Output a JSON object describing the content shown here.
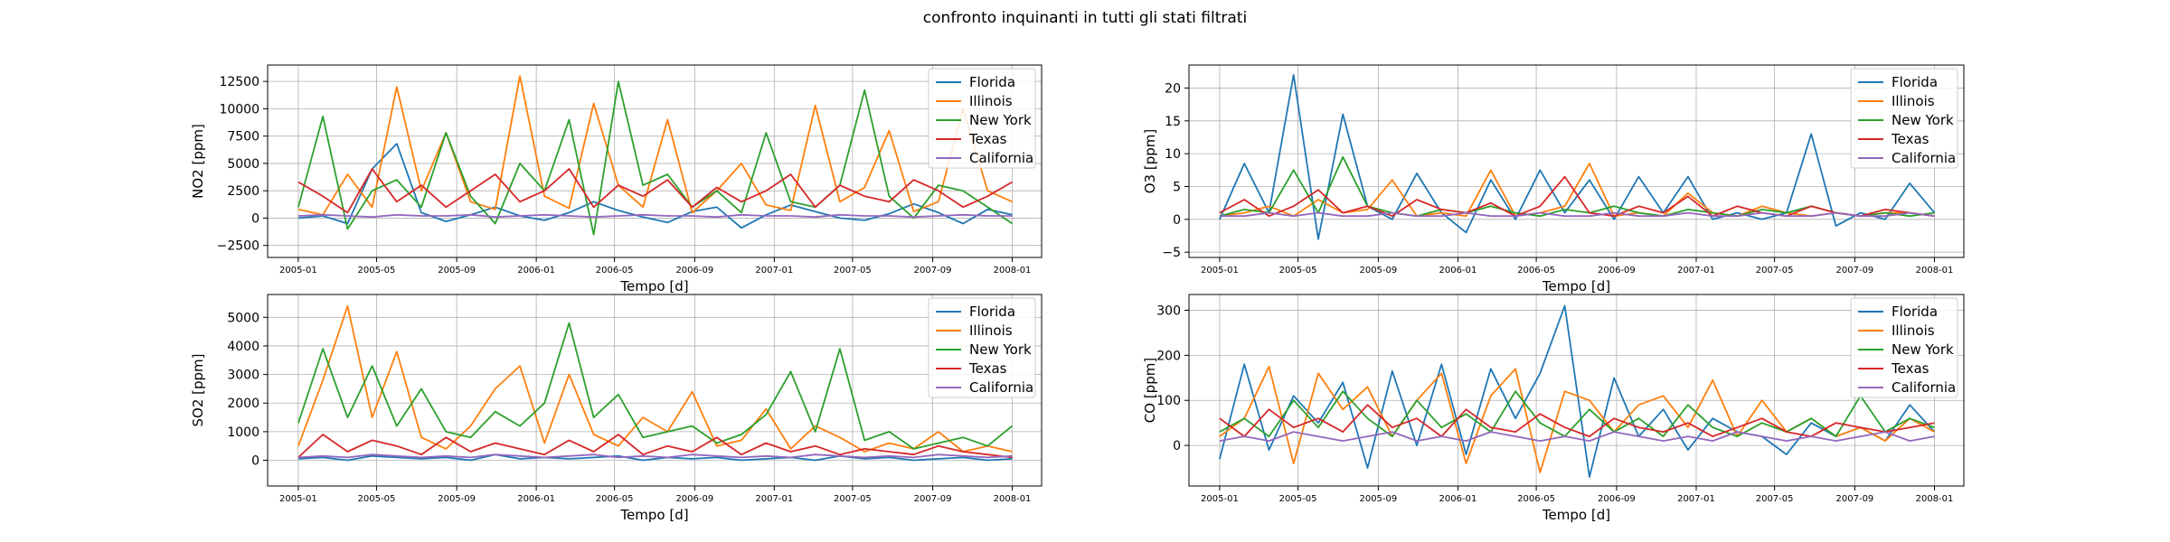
{
  "figure": {
    "title": "confronto inquinanti in tutti gli stati filtrati"
  },
  "colors": {
    "Florida": "#1f77b4",
    "Illinois": "#ff7f0e",
    "New York": "#2ca02c",
    "Texas": "#d62728",
    "California": "#9467bd"
  },
  "chart_data": [
    {
      "type": "line",
      "name": "no2-panel",
      "xlabel": "Tempo [d]",
      "ylabel": "NO2 [ppm]",
      "x_ticks": [
        "2005-01",
        "2005-05",
        "2005-09",
        "2006-01",
        "2006-05",
        "2006-09",
        "2007-01",
        "2007-05",
        "2007-09",
        "2008-01"
      ],
      "x_range": [
        "2004-11-15",
        "2008-02-15"
      ],
      "ylim": [
        -3600,
        14000
      ],
      "y_ticks": [
        -2500,
        0,
        2500,
        5000,
        7500,
        10000,
        12500
      ],
      "grid": true,
      "legend": "top-right",
      "series": [
        {
          "name": "Florida",
          "values": [
            0,
            200,
            -500,
            4500,
            6800,
            500,
            -300,
            300,
            1000,
            200,
            -200,
            500,
            1500,
            700,
            100,
            -400,
            600,
            1000,
            -900,
            300,
            1200,
            600,
            0,
            -200,
            400,
            1300,
            500,
            -500,
            800,
            300
          ]
        },
        {
          "name": "Illinois",
          "values": [
            800,
            300,
            4000,
            1000,
            12000,
            2500,
            7800,
            1500,
            800,
            13000,
            2000,
            900,
            10500,
            3000,
            1000,
            9000,
            500,
            2500,
            5000,
            1200,
            700,
            10300,
            1500,
            2800,
            8000,
            600,
            1500,
            10000,
            2500,
            1500
          ]
        },
        {
          "name": "New York",
          "values": [
            1000,
            9300,
            -1000,
            2500,
            3500,
            1000,
            7800,
            2000,
            -500,
            5000,
            2500,
            9000,
            -1500,
            12500,
            3000,
            4000,
            1000,
            2500,
            500,
            7800,
            1500,
            1000,
            3000,
            11700,
            2000,
            0,
            3000,
            2500,
            1000,
            -500
          ]
        },
        {
          "name": "Texas",
          "values": [
            3300,
            2000,
            500,
            4500,
            1500,
            3000,
            1000,
            2500,
            4000,
            1500,
            2500,
            4500,
            1000,
            3000,
            2000,
            3500,
            1000,
            2800,
            1500,
            2500,
            4000,
            1000,
            3000,
            2000,
            1500,
            3500,
            2500,
            1000,
            2000,
            3300
          ]
        },
        {
          "name": "California",
          "values": [
            200,
            300,
            200,
            100,
            300,
            200,
            200,
            300,
            100,
            200,
            300,
            200,
            100,
            200,
            300,
            200,
            200,
            100,
            300,
            200,
            200,
            100,
            300,
            200,
            200,
            100,
            200,
            300,
            200,
            200
          ]
        }
      ]
    },
    {
      "type": "line",
      "name": "o3-panel",
      "xlabel": "Tempo [d]",
      "ylabel": "O3 [ppm]",
      "x_ticks": [
        "2005-01",
        "2005-05",
        "2005-09",
        "2006-01",
        "2006-05",
        "2006-09",
        "2007-01",
        "2007-05",
        "2007-09",
        "2008-01"
      ],
      "x_range": [
        "2004-11-15",
        "2008-02-15"
      ],
      "ylim": [
        -5.8,
        23.5
      ],
      "y_ticks": [
        -5,
        0,
        5,
        10,
        15,
        20
      ],
      "grid": true,
      "legend": "top-right",
      "series": [
        {
          "name": "Florida",
          "values": [
            0,
            8.5,
            1,
            22,
            -3,
            16,
            2,
            0,
            7,
            1,
            -2,
            6,
            0,
            7.5,
            1,
            6,
            0,
            6.5,
            1,
            6.5,
            0,
            1,
            0,
            1,
            13,
            -1,
            1,
            0,
            5.5,
            1
          ]
        },
        {
          "name": "Illinois",
          "values": [
            0.5,
            1,
            2,
            0.5,
            3,
            1,
            1.5,
            6,
            0.5,
            1,
            0.5,
            7.5,
            0.5,
            1,
            2,
            8.5,
            0.5,
            1,
            0.5,
            4,
            1,
            0.5,
            2,
            1,
            0.5,
            1,
            0.5,
            1,
            1,
            0.5
          ]
        },
        {
          "name": "New York",
          "values": [
            0.5,
            1.5,
            1,
            7.5,
            1,
            9.5,
            2,
            1,
            0.5,
            1.5,
            1,
            2,
            1,
            0.5,
            1.5,
            1,
            2,
            1,
            0.5,
            1.5,
            1,
            0.5,
            1.5,
            1,
            2,
            1,
            0.5,
            1,
            0.5,
            1
          ]
        },
        {
          "name": "Texas",
          "values": [
            1,
            3,
            0.5,
            2,
            4.5,
            1,
            2,
            0.5,
            3,
            1.5,
            1,
            2.5,
            0.5,
            2,
            6.5,
            1,
            0.5,
            2,
            1,
            3.5,
            0.5,
            2,
            1,
            0.5,
            2,
            1,
            0.5,
            1.5,
            1,
            0.5
          ]
        },
        {
          "name": "California",
          "values": [
            0.5,
            0.5,
            1,
            0.5,
            1,
            0.5,
            0.5,
            1,
            0.5,
            0.5,
            1,
            0.5,
            0.5,
            1,
            0.5,
            0.5,
            1,
            0.5,
            0.5,
            1,
            0.5,
            0.5,
            1,
            0.5,
            0.5,
            1,
            0.5,
            0.5,
            1,
            0.5
          ]
        }
      ]
    },
    {
      "type": "line",
      "name": "so2-panel",
      "xlabel": "Tempo [d]",
      "ylabel": "SO2 [ppm]",
      "x_ticks": [
        "2005-01",
        "2005-05",
        "2005-09",
        "2006-01",
        "2006-05",
        "2006-09",
        "2007-01",
        "2007-05",
        "2007-09",
        "2008-01"
      ],
      "x_range": [
        "2004-11-15",
        "2008-02-15"
      ],
      "ylim": [
        -900,
        5800
      ],
      "y_ticks": [
        0,
        1000,
        2000,
        3000,
        4000,
        5000
      ],
      "grid": true,
      "legend": "top-right",
      "series": [
        {
          "name": "Florida",
          "values": [
            50,
            100,
            0,
            150,
            100,
            50,
            100,
            0,
            200,
            50,
            100,
            50,
            100,
            150,
            0,
            100,
            50,
            100,
            0,
            50,
            100,
            0,
            150,
            50,
            100,
            0,
            50,
            100,
            0,
            50
          ]
        },
        {
          "name": "Illinois",
          "values": [
            500,
            2800,
            5400,
            1500,
            3800,
            800,
            400,
            1200,
            2500,
            3300,
            600,
            3000,
            900,
            500,
            1500,
            1000,
            2400,
            500,
            700,
            1800,
            400,
            1200,
            800,
            300,
            600,
            400,
            1000,
            300,
            500,
            300
          ]
        },
        {
          "name": "New York",
          "values": [
            1300,
            3900,
            1500,
            3300,
            1200,
            2500,
            1000,
            800,
            1700,
            1200,
            2000,
            4800,
            1500,
            2300,
            800,
            1000,
            1200,
            600,
            900,
            1600,
            3100,
            1000,
            3900,
            700,
            1000,
            400,
            600,
            800,
            500,
            1200
          ]
        },
        {
          "name": "Texas",
          "values": [
            100,
            900,
            300,
            700,
            500,
            200,
            800,
            300,
            600,
            400,
            200,
            700,
            300,
            900,
            200,
            500,
            300,
            800,
            200,
            600,
            300,
            500,
            200,
            400,
            300,
            200,
            500,
            300,
            200,
            100
          ]
        },
        {
          "name": "California",
          "values": [
            100,
            150,
            100,
            200,
            150,
            100,
            150,
            100,
            200,
            150,
            100,
            150,
            200,
            100,
            150,
            100,
            200,
            150,
            100,
            150,
            100,
            200,
            150,
            100,
            150,
            100,
            200,
            150,
            100,
            150
          ]
        }
      ]
    },
    {
      "type": "line",
      "name": "co-panel",
      "xlabel": "Tempo [d]",
      "ylabel": "CO [ppm]",
      "x_ticks": [
        "2005-01",
        "2005-05",
        "2005-09",
        "2006-01",
        "2006-05",
        "2006-09",
        "2007-01",
        "2007-05",
        "2007-09",
        "2008-01"
      ],
      "x_range": [
        "2004-11-15",
        "2008-02-15"
      ],
      "ylim": [
        -90,
        335
      ],
      "y_ticks": [
        0,
        100,
        200,
        300
      ],
      "grid": true,
      "legend": "top-right",
      "series": [
        {
          "name": "Florida",
          "values": [
            -30,
            180,
            -10,
            110,
            50,
            140,
            -50,
            165,
            0,
            180,
            -20,
            170,
            60,
            160,
            310,
            -70,
            150,
            20,
            80,
            -10,
            60,
            30,
            20,
            -20,
            50,
            20,
            40,
            10,
            90,
            30
          ]
        },
        {
          "name": "Illinois",
          "values": [
            20,
            60,
            175,
            -40,
            160,
            80,
            130,
            20,
            100,
            160,
            -40,
            110,
            170,
            -60,
            120,
            100,
            30,
            90,
            110,
            40,
            145,
            20,
            100,
            30,
            60,
            20,
            40,
            10,
            60,
            30
          ]
        },
        {
          "name": "New York",
          "values": [
            30,
            60,
            20,
            100,
            40,
            120,
            60,
            20,
            100,
            40,
            70,
            30,
            120,
            50,
            20,
            80,
            30,
            60,
            20,
            90,
            40,
            20,
            50,
            30,
            60,
            20,
            110,
            30,
            60,
            40
          ]
        },
        {
          "name": "Texas",
          "values": [
            60,
            20,
            80,
            40,
            60,
            30,
            90,
            40,
            60,
            20,
            80,
            40,
            30,
            70,
            40,
            20,
            60,
            40,
            30,
            50,
            20,
            40,
            60,
            30,
            20,
            50,
            40,
            30,
            40,
            50
          ]
        },
        {
          "name": "California",
          "values": [
            10,
            20,
            10,
            30,
            20,
            10,
            20,
            30,
            10,
            20,
            10,
            30,
            20,
            10,
            20,
            10,
            30,
            20,
            10,
            20,
            10,
            30,
            20,
            10,
            20,
            10,
            20,
            30,
            10,
            20
          ]
        }
      ]
    }
  ]
}
